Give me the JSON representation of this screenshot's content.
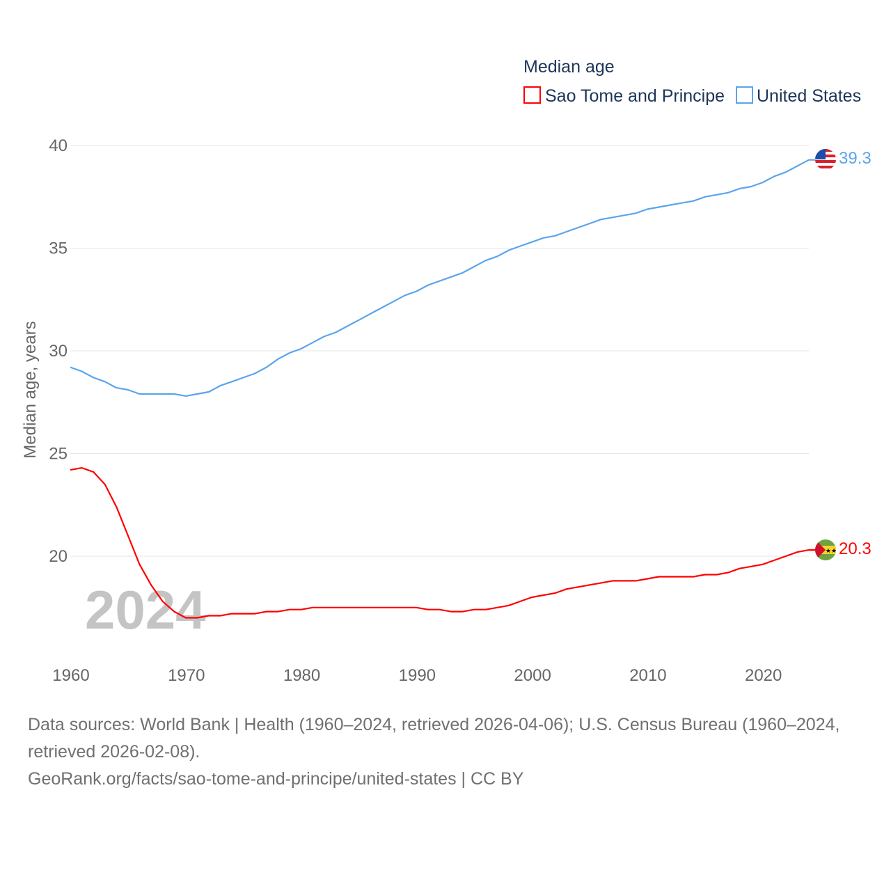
{
  "chart_data": {
    "type": "line",
    "legend_title": "Median age",
    "legend_position": "top-right",
    "ylabel": "Median age, years",
    "xlabel": "",
    "ylim": [
      15,
      40
    ],
    "xlim": [
      1960,
      2024
    ],
    "yticks": [
      20,
      25,
      30,
      35,
      40
    ],
    "xticks": [
      1960,
      1970,
      1980,
      1990,
      2000,
      2010,
      2020
    ],
    "grid": true,
    "watermark_year": "2024",
    "x": [
      1960,
      1961,
      1962,
      1963,
      1964,
      1965,
      1966,
      1967,
      1968,
      1969,
      1970,
      1971,
      1972,
      1973,
      1974,
      1975,
      1976,
      1977,
      1978,
      1979,
      1980,
      1981,
      1982,
      1983,
      1984,
      1985,
      1986,
      1987,
      1988,
      1989,
      1990,
      1991,
      1992,
      1993,
      1994,
      1995,
      1996,
      1997,
      1998,
      1999,
      2000,
      2001,
      2002,
      2003,
      2004,
      2005,
      2006,
      2007,
      2008,
      2009,
      2010,
      2011,
      2012,
      2013,
      2014,
      2015,
      2016,
      2017,
      2018,
      2019,
      2020,
      2021,
      2022,
      2023,
      2024
    ],
    "series": [
      {
        "name": "Sao Tome and Principe",
        "color": "#ff0000",
        "end_label": "20.3",
        "flag": "sao-tome-flag",
        "values": [
          24.2,
          24.3,
          24.1,
          23.5,
          22.4,
          21.0,
          19.6,
          18.6,
          17.8,
          17.3,
          17.0,
          17.0,
          17.1,
          17.1,
          17.2,
          17.2,
          17.2,
          17.3,
          17.3,
          17.4,
          17.4,
          17.5,
          17.5,
          17.5,
          17.5,
          17.5,
          17.5,
          17.5,
          17.5,
          17.5,
          17.5,
          17.4,
          17.4,
          17.3,
          17.3,
          17.4,
          17.4,
          17.5,
          17.6,
          17.8,
          18.0,
          18.1,
          18.2,
          18.4,
          18.5,
          18.6,
          18.7,
          18.8,
          18.8,
          18.8,
          18.9,
          19.0,
          19.0,
          19.0,
          19.0,
          19.1,
          19.1,
          19.2,
          19.4,
          19.5,
          19.6,
          19.8,
          20.0,
          20.2,
          20.3
        ]
      },
      {
        "name": "United States",
        "color": "#5ba4ec",
        "end_label": "39.3",
        "flag": "us-flag",
        "values": [
          29.2,
          29.0,
          28.7,
          28.5,
          28.2,
          28.1,
          27.9,
          27.9,
          27.9,
          27.9,
          27.8,
          27.9,
          28.0,
          28.3,
          28.5,
          28.7,
          28.9,
          29.2,
          29.6,
          29.9,
          30.1,
          30.4,
          30.7,
          30.9,
          31.2,
          31.5,
          31.8,
          32.1,
          32.4,
          32.7,
          32.9,
          33.2,
          33.4,
          33.6,
          33.8,
          34.1,
          34.4,
          34.6,
          34.9,
          35.1,
          35.3,
          35.5,
          35.6,
          35.8,
          36.0,
          36.2,
          36.4,
          36.5,
          36.6,
          36.7,
          36.9,
          37.0,
          37.1,
          37.2,
          37.3,
          37.5,
          37.6,
          37.7,
          37.9,
          38.0,
          38.2,
          38.5,
          38.7,
          39.0,
          39.3
        ]
      }
    ]
  },
  "footer": {
    "line1": "Data sources: World Bank | Health (1960–2024, retrieved 2026-04-06); U.S. Census Bureau (1960–2024, retrieved 2026-02-08).",
    "line2": "GeoRank.org/facts/sao-tome-and-principe/united-states | CC BY"
  }
}
